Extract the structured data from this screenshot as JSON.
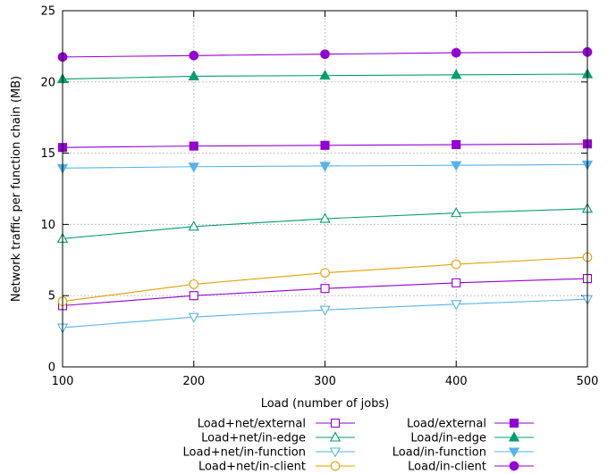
{
  "chart_data": {
    "type": "line",
    "title": "",
    "xlabel": "Load (number of jobs)",
    "ylabel": "Network traffic per function chain (MB)",
    "x": [
      100,
      200,
      300,
      400,
      500
    ],
    "xlim": [
      100,
      500
    ],
    "ylim": [
      0,
      25
    ],
    "xticks": [
      100,
      200,
      300,
      400,
      500
    ],
    "yticks": [
      0,
      5,
      10,
      15,
      20,
      25
    ],
    "grid": true,
    "legend_position": "bottom",
    "series": [
      {
        "name": "Load+net/external",
        "color": "#9400d3",
        "marker": "square-open",
        "values": [
          4.3,
          5.0,
          5.5,
          5.9,
          6.2
        ]
      },
      {
        "name": "Load+net/in-edge",
        "color": "#009e73",
        "marker": "triangle-open",
        "values": [
          9.0,
          9.85,
          10.4,
          10.8,
          11.1
        ]
      },
      {
        "name": "Load+net/in-function",
        "color": "#56b4e9",
        "marker": "tri-down-open",
        "values": [
          2.75,
          3.5,
          4.0,
          4.4,
          4.75
        ]
      },
      {
        "name": "Load+net/in-client",
        "color": "#e69f00",
        "marker": "circle-open",
        "values": [
          4.6,
          5.8,
          6.6,
          7.2,
          7.7
        ]
      },
      {
        "name": "Load/external",
        "color": "#9400d3",
        "marker": "square",
        "values": [
          15.4,
          15.5,
          15.55,
          15.6,
          15.65
        ]
      },
      {
        "name": "Load/in-edge",
        "color": "#009e73",
        "marker": "triangle",
        "values": [
          20.2,
          20.4,
          20.45,
          20.5,
          20.55
        ]
      },
      {
        "name": "Load/in-function",
        "color": "#56b4e9",
        "marker": "tri-down",
        "values": [
          13.95,
          14.05,
          14.1,
          14.15,
          14.2
        ]
      },
      {
        "name": "Load/in-client",
        "color": "#9400d3",
        "marker": "circle",
        "values": [
          21.75,
          21.85,
          21.95,
          22.05,
          22.1
        ]
      }
    ]
  }
}
